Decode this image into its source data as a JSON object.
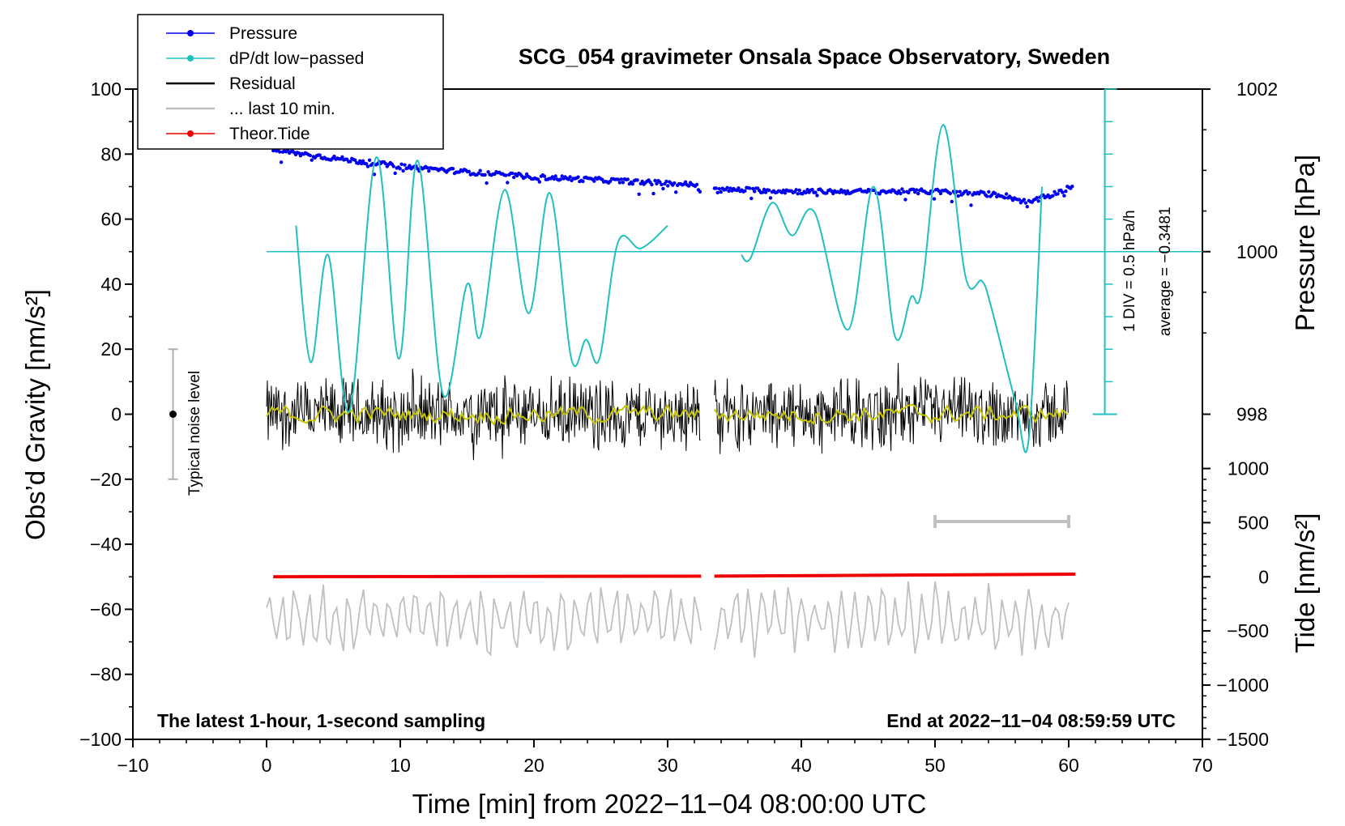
{
  "chart_data": {
    "type": "line",
    "title": "SCG_054 gravimeter Onsala Space Observatory, Sweden",
    "xlabel": "Time [min] from 2022−11−04 08:00:00 UTC",
    "ylabel_left": "Obs’d Gravity [nm/s²]",
    "ylabel_right_top": "Pressure [hPa]",
    "ylabel_right_bottom": "Tide [nm/s²]",
    "xlim": [
      -10,
      70
    ],
    "ylim": [
      -100,
      100
    ],
    "x_ticks": [
      "−10",
      "0",
      "10",
      "20",
      "30",
      "40",
      "50",
      "60",
      "70"
    ],
    "y_ticks": [
      "100",
      "80",
      "60",
      "40",
      "20",
      "0",
      "−20",
      "−40",
      "−60",
      "−80",
      "−100"
    ],
    "pressure_axis": {
      "ticks": [
        "1002",
        "1000",
        "998"
      ],
      "ticks_values": [
        1002,
        1000,
        998
      ],
      "ref_hpa": 1000,
      "ref_gravity": 50,
      "hpa_to_gravity": 25
    },
    "tide_axis": {
      "ticks": [
        "1000",
        "500",
        "0",
        "−500",
        "−1000",
        "−1500"
      ],
      "ticks_values": [
        1000,
        500,
        0,
        -500,
        -1000,
        -1500
      ],
      "ref_tide": 0,
      "ref_gravity": -50,
      "tide_to_gravity": 0.0333
    },
    "dpdt_scale": {
      "label": "1 DIV = 0.5 hPa/h",
      "average": "average = −0.3481",
      "ref_level": 50,
      "bottom": 0,
      "top": 100,
      "divisions": 10
    },
    "noise_bar": {
      "label": "Typical noise level",
      "x": -7,
      "center": 0,
      "low": -20,
      "high": 20
    },
    "last10_bar": {
      "x0": 50,
      "x1": 60,
      "y": -33
    },
    "annotations": {
      "left": "The latest 1-hour, 1-second sampling",
      "right": "End at 2022−11−04 08:59:59 UTC"
    },
    "legend": [
      {
        "name": "Pressure",
        "color": "#0000ee",
        "marker": true
      },
      {
        "name": "dP/dt low−passed",
        "color": "#20c0c0",
        "marker": true
      },
      {
        "name": "Residual",
        "color": "#000000",
        "marker": false
      },
      {
        "name": "... last 10 min.",
        "color": "#c0c0c0",
        "marker": false
      },
      {
        "name": "Theor.Tide",
        "color": "#ee0000",
        "marker": true
      }
    ],
    "gap": [
      32.5,
      33.5
    ],
    "series": [
      {
        "name": "Pressure",
        "color": "#0000ee",
        "units": "hPa",
        "x": [
          0.5,
          5,
          10,
          15,
          20,
          25,
          30,
          32.5,
          33.5,
          36,
          40,
          45,
          50,
          55,
          57,
          60
        ],
        "values": [
          1001.25,
          1001.15,
          1001.05,
          1000.98,
          1000.92,
          1000.88,
          1000.84,
          1000.82,
          1000.76,
          1000.76,
          1000.74,
          1000.74,
          1000.74,
          1000.7,
          1000.6,
          1000.78
        ]
      },
      {
        "name": "dP/dt low−passed",
        "color": "#20c0c0",
        "units": "gravity-equivalent",
        "x": [
          2.2,
          3.3,
          4.6,
          6.2,
          8.2,
          9.9,
          11.3,
          13.2,
          15.0,
          16.0,
          17.8,
          19.6,
          21.2,
          22.8,
          23.9,
          24.9,
          26.3,
          28.0,
          30.0,
          35.5,
          36.2,
          37.8,
          39.3,
          41.0,
          43.5,
          45.4,
          47.0,
          48.2,
          49.0,
          50.6,
          52.3,
          53.5,
          54.2,
          56.0,
          57.0,
          58.0
        ],
        "values": [
          58,
          16,
          49,
          1,
          79,
          17,
          78,
          6,
          40,
          24,
          69,
          31,
          68,
          17,
          23,
          17,
          53,
          51,
          58,
          49,
          48,
          65,
          55,
          62,
          26,
          70,
          24,
          36,
          38,
          89,
          42,
          41,
          33,
          4,
          -8,
          70
        ]
      },
      {
        "name": "Residual",
        "color": "#000000",
        "noise_amplitude": 13
      },
      {
        "name": "Residual smoothed",
        "color": "#c8c800",
        "noise_amplitude": 2.5
      },
      {
        "name": "Theor.Tide",
        "color": "#ee0000",
        "units": "nm/s²",
        "x": [
          0.5,
          32.5,
          33.5,
          60.5
        ],
        "values": [
          0,
          6,
          6,
          24
        ]
      },
      {
        "name": "... last 10 min.",
        "color": "#c0c0c0",
        "center": -63,
        "amplitude": 10
      }
    ]
  }
}
